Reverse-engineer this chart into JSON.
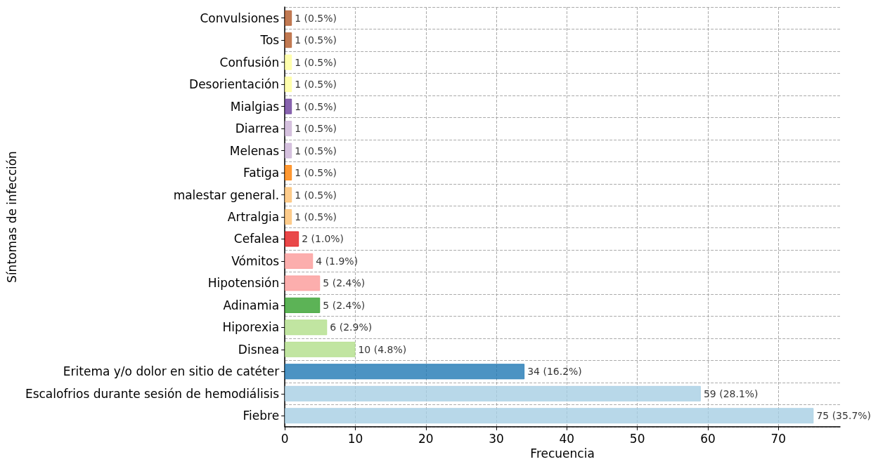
{
  "chart_data": {
    "type": "bar",
    "orientation": "horizontal",
    "xlabel": "Frecuencia",
    "ylabel": "Síntomas de infección",
    "categories": [
      "Convulsiones",
      "Tos",
      "Confusión",
      "Desorientación",
      "Mialgias",
      "Diarrea",
      "Melenas",
      "Fatiga",
      "malestar general.",
      "Artralgia",
      "Cefalea",
      "Vómitos",
      "Hipotensión",
      "Adinamia",
      "Hiporexia",
      "Disnea",
      "Eritema y/o dolor en sitio de catéter",
      "Escalofrios durante sesión de hemodiálisis",
      "Fiebre"
    ],
    "values": [
      1,
      1,
      1,
      1,
      1,
      1,
      1,
      1,
      1,
      1,
      2,
      4,
      5,
      5,
      6,
      10,
      34,
      59,
      75
    ],
    "colors": [
      "#b15928",
      "#b15928",
      "#ffff99",
      "#ffff99",
      "#6a3d9a",
      "#cab2d6",
      "#cab2d6",
      "#ff7f00",
      "#fdbf6f",
      "#fdbf6f",
      "#e31a1c",
      "#fb9a99",
      "#fb9a99",
      "#33a02c",
      "#b2df8a",
      "#b2df8a",
      "#1f78b4",
      "#a6cee3",
      "#a6cee3"
    ],
    "value_labels": [
      "1 (0.5%)",
      "1 (0.5%)",
      "1 (0.5%)",
      "1 (0.5%)",
      "1 (0.5%)",
      "1 (0.5%)",
      "1 (0.5%)",
      "1 (0.5%)",
      "1 (0.5%)",
      "1 (0.5%)",
      "2 (1.0%)",
      "4 (1.9%)",
      "5 (2.4%)",
      "5 (2.4%)",
      "6 (2.9%)",
      "10 (4.8%)",
      "34 (16.2%)",
      "59 (28.1%)",
      "75 (35.7%)"
    ],
    "xlim": [
      0,
      78.75
    ],
    "xticks": [
      0,
      10,
      20,
      30,
      40,
      50,
      60,
      70
    ],
    "grid": true
  }
}
